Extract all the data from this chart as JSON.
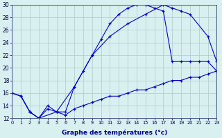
{
  "title": "Graphe des températures (°c)",
  "background_color": "#d8f0f0",
  "grid_color": "#b0c8c8",
  "line_color": "#0000cc",
  "xlim": [
    0,
    23
  ],
  "ylim": [
    12,
    30
  ],
  "xticks": [
    0,
    1,
    2,
    3,
    4,
    5,
    6,
    7,
    8,
    9,
    10,
    11,
    12,
    13,
    14,
    15,
    16,
    17,
    18,
    19,
    20,
    21,
    22,
    23
  ],
  "yticks": [
    12,
    14,
    16,
    18,
    20,
    22,
    24,
    26,
    28,
    30
  ],
  "line1_x": [
    0,
    1,
    2,
    3,
    4,
    5,
    6,
    7,
    8,
    9,
    10,
    11,
    12,
    13,
    14,
    15,
    16,
    17,
    18,
    19,
    20,
    21,
    22,
    23
  ],
  "line1_y": [
    16,
    15.5,
    13,
    12,
    14,
    13,
    13,
    17,
    19.5,
    22,
    24.5,
    27,
    28.5,
    29.5,
    30,
    30,
    29.5,
    29,
    21,
    21,
    21,
    21,
    21,
    19.5
  ],
  "line2_x": [
    0,
    1,
    2,
    3,
    5,
    7,
    9,
    11,
    13,
    15,
    17,
    18,
    19,
    20,
    22,
    23
  ],
  "line2_y": [
    16,
    15.5,
    13,
    12,
    13,
    17,
    22,
    25,
    27,
    28.5,
    30,
    29.5,
    29,
    28.5,
    25,
    21
  ],
  "line3_x": [
    0,
    1,
    2,
    3,
    4,
    5,
    6,
    7,
    8,
    9,
    10,
    11,
    12,
    13,
    14,
    15,
    16,
    17,
    18,
    19,
    20,
    21,
    22,
    23
  ],
  "line3_y": [
    16,
    15.5,
    13,
    12,
    13.5,
    13,
    12.5,
    13.5,
    14,
    14.5,
    15,
    15.5,
    15.5,
    16,
    16.5,
    16.5,
    17,
    17.5,
    18,
    18,
    18.5,
    18.5,
    19,
    19.5
  ]
}
